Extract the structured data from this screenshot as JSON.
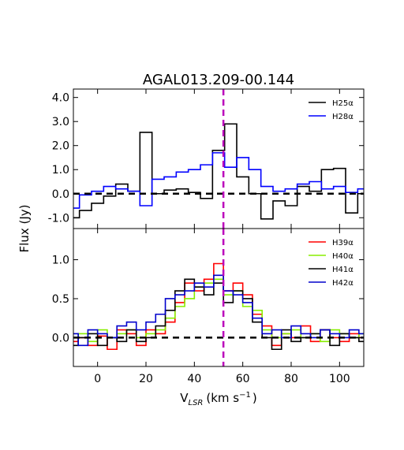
{
  "title": "AGAL013.209-00.144",
  "ylabel": "Flux (Jy)",
  "xlabel": "V",
  "xlabel_sub": "LSR",
  "xlabel_units": "(km s",
  "xlabel_exp": "−1",
  "xlabel_close": ")",
  "chart_data": [
    {
      "type": "line",
      "xlim": [
        -10,
        110
      ],
      "ylim": [
        -1.45,
        4.35
      ],
      "yticks": [
        -1.0,
        0.0,
        1.0,
        2.0,
        3.0,
        4.0
      ],
      "ytick_labels": [
        "-1.0",
        "0.0",
        "1.0",
        "2.0",
        "3.0",
        "4.0"
      ],
      "reference_lines": {
        "zero_dashed": 0.0,
        "velocity_dashed": 52
      },
      "legend_position": "top-right",
      "series": [
        {
          "name": "H25α",
          "color": "#000000",
          "x": [
            -10,
            -5,
            0,
            5,
            10,
            15,
            20,
            25,
            30,
            35,
            40,
            45,
            50,
            55,
            60,
            65,
            70,
            75,
            80,
            85,
            90,
            95,
            100,
            105,
            110
          ],
          "y": [
            -1.0,
            -0.7,
            -0.4,
            -0.1,
            0.4,
            0.1,
            2.55,
            0.0,
            0.15,
            0.2,
            0.05,
            -0.2,
            1.8,
            2.9,
            0.7,
            0.0,
            -1.05,
            -0.3,
            -0.5,
            0.3,
            0.1,
            1.0,
            1.05,
            -0.8,
            0.0
          ]
        },
        {
          "name": "H28α",
          "color": "#0000ff",
          "x": [
            -10,
            -5,
            0,
            5,
            10,
            15,
            20,
            25,
            30,
            35,
            40,
            45,
            50,
            55,
            60,
            65,
            70,
            75,
            80,
            85,
            90,
            95,
            100,
            105,
            110
          ],
          "y": [
            -0.6,
            -0.05,
            0.1,
            0.3,
            0.2,
            0.1,
            -0.5,
            0.6,
            0.7,
            0.9,
            1.0,
            1.2,
            1.7,
            1.1,
            1.5,
            1.0,
            0.3,
            0.1,
            0.2,
            0.4,
            0.5,
            0.2,
            0.3,
            0.05,
            0.2
          ]
        }
      ]
    },
    {
      "type": "line",
      "xlim": [
        -10,
        110
      ],
      "ylim": [
        -0.37,
        1.4
      ],
      "yticks": [
        0.0,
        0.5,
        1.0
      ],
      "ytick_labels": [
        "0.0",
        "0.5",
        "1.0"
      ],
      "xticks": [
        0,
        20,
        40,
        60,
        80,
        100
      ],
      "xtick_labels": [
        "0",
        "20",
        "40",
        "60",
        "80",
        "100"
      ],
      "reference_lines": {
        "zero_dashed": 0.0,
        "velocity_dashed": 52
      },
      "legend_position": "top-right",
      "series": [
        {
          "name": "H39α",
          "color": "#ff0000",
          "x": [
            -10,
            -6,
            -2,
            2,
            6,
            10,
            14,
            18,
            22,
            26,
            30,
            34,
            38,
            42,
            46,
            50,
            54,
            58,
            62,
            66,
            70,
            74,
            78,
            82,
            86,
            90,
            94,
            98,
            102,
            106,
            110
          ],
          "y": [
            -0.05,
            0.0,
            -0.1,
            0.02,
            -0.15,
            0.1,
            0.05,
            -0.1,
            0.1,
            0.05,
            0.2,
            0.45,
            0.7,
            0.6,
            0.75,
            0.95,
            0.6,
            0.7,
            0.55,
            0.3,
            0.15,
            -0.1,
            0.05,
            0.0,
            0.15,
            -0.05,
            0.1,
            0.0,
            -0.05,
            0.05,
            0.0
          ]
        },
        {
          "name": "H40α",
          "color": "#88ee00",
          "x": [
            -10,
            -6,
            -2,
            2,
            6,
            10,
            14,
            18,
            22,
            26,
            30,
            34,
            38,
            42,
            46,
            50,
            54,
            58,
            62,
            66,
            70,
            74,
            78,
            82,
            86,
            90,
            94,
            98,
            102,
            106,
            110
          ],
          "y": [
            0.0,
            0.05,
            -0.05,
            0.1,
            0.0,
            0.05,
            0.1,
            0.0,
            0.05,
            0.1,
            0.25,
            0.4,
            0.5,
            0.65,
            0.7,
            0.75,
            0.55,
            0.6,
            0.4,
            0.35,
            0.1,
            0.0,
            0.05,
            0.1,
            0.0,
            0.05,
            -0.05,
            0.1,
            0.05,
            0.0,
            0.05
          ]
        },
        {
          "name": "H41α",
          "color": "#000000",
          "x": [
            -10,
            -6,
            -2,
            2,
            6,
            10,
            14,
            18,
            22,
            26,
            30,
            34,
            38,
            42,
            46,
            50,
            54,
            58,
            62,
            66,
            70,
            74,
            78,
            82,
            86,
            90,
            94,
            98,
            102,
            106,
            110
          ],
          "y": [
            -0.1,
            0.0,
            0.05,
            -0.1,
            0.0,
            -0.05,
            0.1,
            -0.05,
            0.0,
            0.15,
            0.35,
            0.6,
            0.75,
            0.65,
            0.55,
            0.7,
            0.45,
            0.6,
            0.5,
            0.2,
            0.0,
            -0.15,
            0.1,
            -0.05,
            0.0,
            0.05,
            0.1,
            -0.1,
            0.05,
            0.0,
            -0.05
          ]
        },
        {
          "name": "H42α",
          "color": "#0000cc",
          "x": [
            -10,
            -6,
            -2,
            2,
            6,
            10,
            14,
            18,
            22,
            26,
            30,
            34,
            38,
            42,
            46,
            50,
            54,
            58,
            62,
            66,
            70,
            74,
            78,
            82,
            86,
            90,
            94,
            98,
            102,
            106,
            110
          ],
          "y": [
            0.05,
            -0.1,
            0.1,
            0.05,
            0.0,
            0.15,
            0.2,
            0.1,
            0.2,
            0.3,
            0.5,
            0.55,
            0.6,
            0.7,
            0.65,
            0.8,
            0.6,
            0.55,
            0.45,
            0.25,
            0.05,
            0.1,
            0.0,
            0.15,
            0.05,
            0.0,
            0.1,
            0.05,
            0.0,
            0.1,
            0.05
          ]
        }
      ]
    }
  ]
}
